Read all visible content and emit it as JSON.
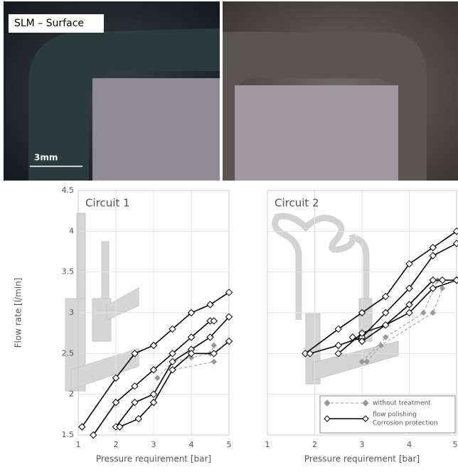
{
  "photos": {
    "label": "SLM – Surface",
    "scale_bar": "3mm"
  },
  "chart_data": [
    {
      "type": "line",
      "title": "Circuit 1",
      "xlabel": "Pressure requirement [bar]",
      "ylabel": "Flow rate [l/min]",
      "xlim": [
        1,
        5
      ],
      "ylim": [
        1.5,
        4.5
      ],
      "xticks": [
        1,
        2,
        3,
        4,
        5
      ],
      "yticks": [
        1.5,
        2,
        2.5,
        3,
        3.5,
        4,
        4.5
      ],
      "grid": true,
      "series": [
        {
          "color": "#999999",
          "dashed": true,
          "marker": "filled-diamond",
          "lines": [
            {
              "x": [
                3.1,
                3.5,
                4,
                4.5,
                4.6
              ],
              "values": [
                2.2,
                2.4,
                2.45,
                2.5,
                2.6
              ]
            },
            {
              "x": [
                3,
                3.5,
                4.6
              ],
              "values": [
                1.9,
                2.3,
                2.4
              ]
            }
          ]
        },
        {
          "color": "#000000",
          "dashed": false,
          "marker": "open-diamond",
          "lines": [
            {
              "x": [
                1.1,
                2,
                2.5,
                3,
                3.5,
                4,
                4.5,
                5
              ],
              "values": [
                1.6,
                2.2,
                2.5,
                2.6,
                2.8,
                3.0,
                3.1,
                3.25
              ]
            },
            {
              "x": [
                1.4,
                2,
                2.5,
                3,
                3.5,
                4,
                4.5,
                4.6
              ],
              "values": [
                1.5,
                1.9,
                2.1,
                2.3,
                2.5,
                2.7,
                2.9,
                2.9
              ]
            },
            {
              "x": [
                2,
                2.5,
                3,
                3.5,
                4,
                4.5,
                5
              ],
              "values": [
                1.6,
                1.9,
                2.0,
                2.4,
                2.55,
                2.7,
                2.95
              ]
            },
            {
              "x": [
                2.1,
                2.6,
                3,
                3.5,
                4,
                4.6,
                5
              ],
              "values": [
                1.6,
                1.7,
                1.9,
                2.3,
                2.5,
                2.5,
                2.65
              ]
            }
          ]
        }
      ]
    },
    {
      "type": "line",
      "title": "Circuit 2",
      "xlabel": "Pressure requirement [bar]",
      "xlim": [
        1,
        5
      ],
      "ylim": [
        1.5,
        4.5
      ],
      "xticks": [
        1,
        2,
        3,
        4,
        5
      ],
      "yticks": [
        1.5,
        2,
        2.5,
        3,
        3.5,
        4,
        4.5
      ],
      "grid": true,
      "legend": "lower right",
      "series": [
        {
          "name": [
            "without treatment"
          ],
          "color": "#999999",
          "dashed": true,
          "marker": "filled-diamond",
          "lines": [
            {
              "x": [
                3,
                3.5,
                4.3,
                4.6
              ],
              "values": [
                2.4,
                2.7,
                3.0,
                3.4
              ]
            },
            {
              "x": [
                3.1,
                3.4,
                4.5,
                4.7
              ],
              "values": [
                2.4,
                2.6,
                3.0,
                3.3
              ]
            }
          ]
        },
        {
          "name": [
            "flow polishing",
            "Corrosion protection"
          ],
          "color": "#000000",
          "dashed": false,
          "marker": "open-diamond",
          "lines": [
            {
              "x": [
                1.8,
                2.5,
                3,
                3.5,
                4,
                4.5,
                5
              ],
              "values": [
                2.5,
                2.8,
                3.0,
                3.2,
                3.6,
                3.8,
                4.0
              ]
            },
            {
              "x": [
                1.9,
                2.5,
                3,
                3.5,
                4,
                4.5,
                5
              ],
              "values": [
                2.5,
                2.6,
                2.7,
                3.0,
                3.3,
                3.7,
                3.85
              ]
            },
            {
              "x": [
                2.5,
                3,
                3.5,
                4,
                4.5,
                4.7,
                5
              ],
              "values": [
                2.5,
                2.75,
                2.85,
                3.1,
                3.4,
                3.4,
                3.4
              ]
            },
            {
              "x": [
                2.8,
                3,
                3.5,
                4,
                4.5,
                5
              ],
              "values": [
                2.7,
                2.65,
                2.85,
                3.0,
                3.3,
                3.4
              ]
            }
          ]
        }
      ]
    }
  ]
}
